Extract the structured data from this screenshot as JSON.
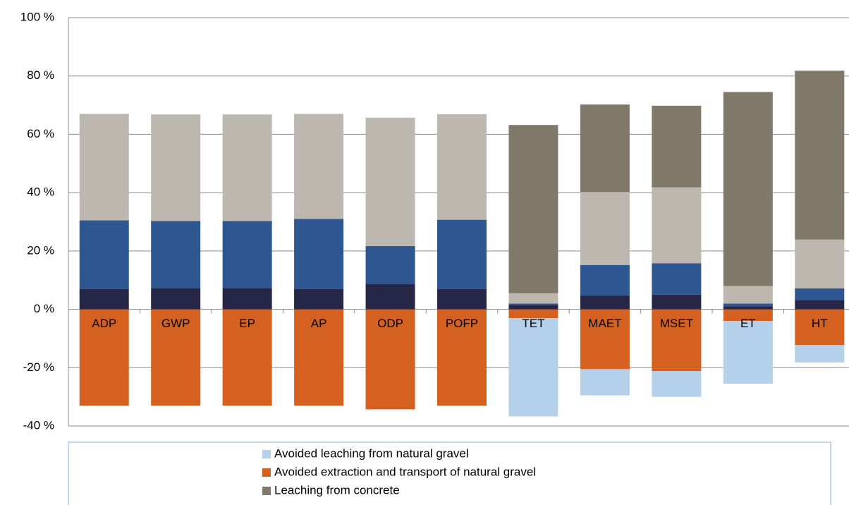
{
  "chart_data": {
    "type": "stacked_bar",
    "categories": [
      "ADP",
      "GWP",
      "EP",
      "AP",
      "ODP",
      "POFP",
      "TET",
      "MAET",
      "MSET",
      "ET",
      "HT"
    ],
    "series": [
      {
        "color": "#262747",
        "values": [
          7,
          7.3,
          7.3,
          7,
          8.7,
          7,
          1.5,
          4.8,
          5,
          1,
          3.2
        ]
      },
      {
        "color": "#2e5791",
        "values": [
          23.5,
          23,
          23,
          24,
          13,
          23.7,
          0.5,
          10.4,
          10.8,
          1,
          4
        ]
      },
      {
        "color": "#bcb8b0",
        "values": [
          36.5,
          36.5,
          36.5,
          36,
          44,
          36.2,
          3.5,
          25,
          26,
          6,
          16.7
        ]
      },
      {
        "name": "Leaching from concrete",
        "color": "#807868",
        "values": [
          0,
          0,
          0,
          0,
          0,
          0,
          57.7,
          30,
          28,
          66.5,
          57.9
        ]
      },
      {
        "name": "Avoided extraction and transport of natural gravel",
        "color": "#d4611f",
        "values": [
          -33,
          -33,
          -33,
          -33,
          -34.3,
          -33,
          -3,
          -20.5,
          -21.2,
          -4,
          -12.2
        ]
      },
      {
        "name": "Avoided leaching from natural gravel",
        "color": "#b5d0ea",
        "values": [
          0,
          0,
          0,
          0,
          0,
          0,
          -33.7,
          -9,
          -8.8,
          -21.5,
          -6
        ]
      }
    ],
    "ylim": [
      -40,
      100
    ],
    "yticks": [
      {
        "value": -40,
        "label": "-40 %"
      },
      {
        "value": -20,
        "label": "-20 %"
      },
      {
        "value": 0,
        "label": "0 %"
      },
      {
        "value": 20,
        "label": "20 %"
      },
      {
        "value": 40,
        "label": "40 %"
      },
      {
        "value": 60,
        "label": "60 %"
      },
      {
        "value": 80,
        "label": "80 %"
      },
      {
        "value": 100,
        "label": "100 %"
      }
    ],
    "grid": true,
    "legend": "bottom"
  }
}
